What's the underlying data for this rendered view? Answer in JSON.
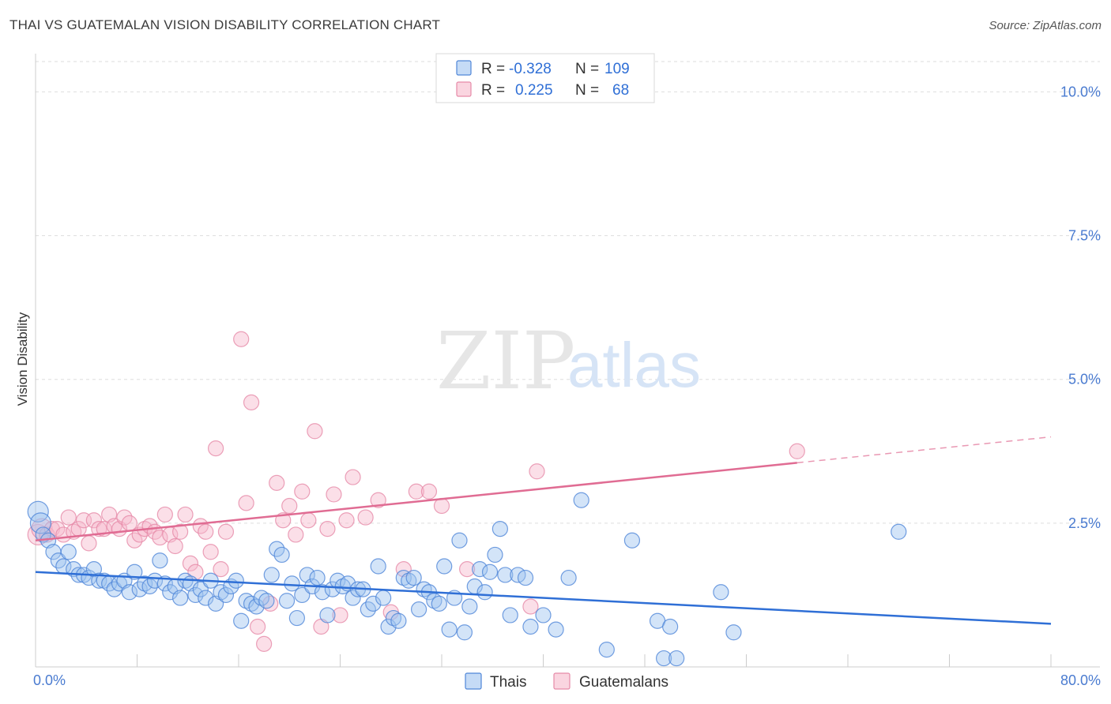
{
  "title": "THAI VS GUATEMALAN VISION DISABILITY CORRELATION CHART",
  "source": "Source: ZipAtlas.com",
  "watermark": {
    "zip": "ZIP",
    "atlas": "atlas"
  },
  "colors": {
    "thai_fill": "#9ec3f0",
    "thai_stroke": "#4f86d8",
    "thai_line": "#2f6fd6",
    "guat_fill": "#f7b9cc",
    "guat_stroke": "#e68aa8",
    "guat_line": "#e06c93",
    "grid": "#dddddd",
    "tick_label": "#4a7bd0"
  },
  "legend": {
    "rows": [
      {
        "r_label": "R =",
        "r_value": "-0.328",
        "n_label": "N =",
        "n_value": "109"
      },
      {
        "r_label": "R =",
        "r_value": "0.225",
        "n_label": "N =",
        "n_value": "68"
      }
    ]
  },
  "bottom_legend": [
    "Thais",
    "Guatemalans"
  ],
  "chart_data": {
    "type": "scatter",
    "xlabel": "",
    "ylabel": "Vision Disability",
    "xlim": [
      0,
      80
    ],
    "ylim": [
      0,
      10.5
    ],
    "x_tick_labels": [
      "0.0%",
      "80.0%"
    ],
    "y_ticks": [
      2.5,
      5.0,
      7.5,
      10.0
    ],
    "y_tick_labels": [
      "2.5%",
      "5.0%",
      "7.5%",
      "10.0%"
    ],
    "grid": "horizontal dashed",
    "legend_position": "top-center",
    "series": [
      {
        "name": "Thais",
        "trend": {
          "x": [
            0,
            80
          ],
          "y": [
            1.65,
            0.75
          ],
          "dashed_from": null
        },
        "points": [
          [
            0.2,
            2.7
          ],
          [
            0.4,
            2.5
          ],
          [
            0.6,
            2.3
          ],
          [
            1.0,
            2.2
          ],
          [
            1.4,
            2.0
          ],
          [
            1.8,
            1.85
          ],
          [
            2.2,
            1.75
          ],
          [
            2.6,
            2.0
          ],
          [
            3.0,
            1.7
          ],
          [
            3.4,
            1.6
          ],
          [
            3.8,
            1.6
          ],
          [
            4.2,
            1.55
          ],
          [
            4.6,
            1.7
          ],
          [
            5.0,
            1.5
          ],
          [
            5.4,
            1.5
          ],
          [
            5.8,
            1.45
          ],
          [
            6.2,
            1.35
          ],
          [
            6.6,
            1.45
          ],
          [
            7.0,
            1.5
          ],
          [
            7.4,
            1.3
          ],
          [
            7.8,
            1.65
          ],
          [
            8.2,
            1.35
          ],
          [
            8.6,
            1.45
          ],
          [
            9.0,
            1.4
          ],
          [
            9.4,
            1.5
          ],
          [
            9.8,
            1.85
          ],
          [
            10.2,
            1.45
          ],
          [
            10.6,
            1.3
          ],
          [
            11.0,
            1.4
          ],
          [
            11.4,
            1.2
          ],
          [
            11.8,
            1.5
          ],
          [
            12.2,
            1.45
          ],
          [
            12.6,
            1.25
          ],
          [
            13.0,
            1.35
          ],
          [
            13.4,
            1.2
          ],
          [
            13.8,
            1.5
          ],
          [
            14.2,
            1.1
          ],
          [
            14.6,
            1.3
          ],
          [
            15.0,
            1.25
          ],
          [
            15.4,
            1.4
          ],
          [
            15.8,
            1.5
          ],
          [
            16.2,
            0.8
          ],
          [
            16.6,
            1.15
          ],
          [
            17.0,
            1.1
          ],
          [
            17.4,
            1.05
          ],
          [
            17.8,
            1.2
          ],
          [
            18.2,
            1.15
          ],
          [
            18.6,
            1.6
          ],
          [
            19.0,
            2.05
          ],
          [
            19.4,
            1.95
          ],
          [
            19.8,
            1.15
          ],
          [
            20.2,
            1.45
          ],
          [
            20.6,
            0.85
          ],
          [
            21.0,
            1.25
          ],
          [
            21.4,
            1.6
          ],
          [
            21.8,
            1.4
          ],
          [
            22.2,
            1.55
          ],
          [
            22.6,
            1.3
          ],
          [
            23.0,
            0.9
          ],
          [
            23.4,
            1.35
          ],
          [
            23.8,
            1.5
          ],
          [
            24.2,
            1.4
          ],
          [
            24.6,
            1.45
          ],
          [
            25.0,
            1.2
          ],
          [
            25.4,
            1.35
          ],
          [
            25.8,
            1.35
          ],
          [
            26.2,
            1.0
          ],
          [
            26.6,
            1.1
          ],
          [
            27.0,
            1.75
          ],
          [
            27.4,
            1.2
          ],
          [
            27.8,
            0.7
          ],
          [
            28.2,
            0.85
          ],
          [
            28.6,
            0.8
          ],
          [
            29.0,
            1.55
          ],
          [
            29.4,
            1.5
          ],
          [
            29.8,
            1.55
          ],
          [
            30.2,
            1.0
          ],
          [
            30.6,
            1.35
          ],
          [
            31.0,
            1.3
          ],
          [
            31.4,
            1.15
          ],
          [
            31.8,
            1.1
          ],
          [
            32.2,
            1.75
          ],
          [
            32.6,
            0.65
          ],
          [
            33.0,
            1.2
          ],
          [
            33.4,
            2.2
          ],
          [
            33.8,
            0.6
          ],
          [
            34.2,
            1.05
          ],
          [
            34.6,
            1.4
          ],
          [
            35.0,
            1.7
          ],
          [
            35.4,
            1.3
          ],
          [
            35.8,
            1.65
          ],
          [
            36.2,
            1.95
          ],
          [
            36.6,
            2.4
          ],
          [
            37.0,
            1.6
          ],
          [
            37.4,
            0.9
          ],
          [
            38.0,
            1.6
          ],
          [
            38.6,
            1.55
          ],
          [
            39.0,
            0.7
          ],
          [
            40.0,
            0.9
          ],
          [
            41.0,
            0.65
          ],
          [
            42.0,
            1.55
          ],
          [
            43.0,
            2.9
          ],
          [
            45.0,
            0.3
          ],
          [
            47.0,
            2.2
          ],
          [
            49.0,
            0.8
          ],
          [
            49.5,
            0.15
          ],
          [
            50.0,
            0.7
          ],
          [
            50.5,
            0.15
          ],
          [
            54.0,
            1.3
          ],
          [
            55.0,
            0.6
          ],
          [
            68.0,
            2.35
          ]
        ]
      },
      {
        "name": "Guatemalans",
        "trend": {
          "x": [
            0,
            80
          ],
          "y": [
            2.2,
            4.0
          ],
          "dashed_from": 60
        },
        "points": [
          [
            0.2,
            2.3
          ],
          [
            0.5,
            2.4
          ],
          [
            0.9,
            2.3
          ],
          [
            1.3,
            2.4
          ],
          [
            1.7,
            2.4
          ],
          [
            2.2,
            2.3
          ],
          [
            2.6,
            2.6
          ],
          [
            3.0,
            2.35
          ],
          [
            3.4,
            2.4
          ],
          [
            3.8,
            2.55
          ],
          [
            4.2,
            2.15
          ],
          [
            4.6,
            2.55
          ],
          [
            5.0,
            2.4
          ],
          [
            5.4,
            2.4
          ],
          [
            5.8,
            2.65
          ],
          [
            6.2,
            2.45
          ],
          [
            6.6,
            2.4
          ],
          [
            7.0,
            2.6
          ],
          [
            7.4,
            2.5
          ],
          [
            7.8,
            2.2
          ],
          [
            8.2,
            2.3
          ],
          [
            8.6,
            2.4
          ],
          [
            9.0,
            2.45
          ],
          [
            9.4,
            2.35
          ],
          [
            9.8,
            2.25
          ],
          [
            10.2,
            2.65
          ],
          [
            10.6,
            2.3
          ],
          [
            11.0,
            2.1
          ],
          [
            11.4,
            2.35
          ],
          [
            11.8,
            2.65
          ],
          [
            12.2,
            1.8
          ],
          [
            12.6,
            1.65
          ],
          [
            13.0,
            2.45
          ],
          [
            13.4,
            2.35
          ],
          [
            13.8,
            2.0
          ],
          [
            14.2,
            3.8
          ],
          [
            14.6,
            1.7
          ],
          [
            15.0,
            2.35
          ],
          [
            16.2,
            5.7
          ],
          [
            16.6,
            2.85
          ],
          [
            17.0,
            4.6
          ],
          [
            17.5,
            0.7
          ],
          [
            18.0,
            0.4
          ],
          [
            18.5,
            1.1
          ],
          [
            19.0,
            3.2
          ],
          [
            19.5,
            2.55
          ],
          [
            20.0,
            2.8
          ],
          [
            20.5,
            2.3
          ],
          [
            21.0,
            3.05
          ],
          [
            21.5,
            2.55
          ],
          [
            22.0,
            4.1
          ],
          [
            22.5,
            0.7
          ],
          [
            23.0,
            2.4
          ],
          [
            23.5,
            3.0
          ],
          [
            24.0,
            0.9
          ],
          [
            24.5,
            2.55
          ],
          [
            25.0,
            3.3
          ],
          [
            26.0,
            2.6
          ],
          [
            27.0,
            2.9
          ],
          [
            28.0,
            0.95
          ],
          [
            29.0,
            1.7
          ],
          [
            30.0,
            3.05
          ],
          [
            31.0,
            3.05
          ],
          [
            32.0,
            2.8
          ],
          [
            39.0,
            1.05
          ],
          [
            39.5,
            3.4
          ],
          [
            60.0,
            3.75
          ],
          [
            34.0,
            1.7
          ]
        ]
      }
    ]
  }
}
